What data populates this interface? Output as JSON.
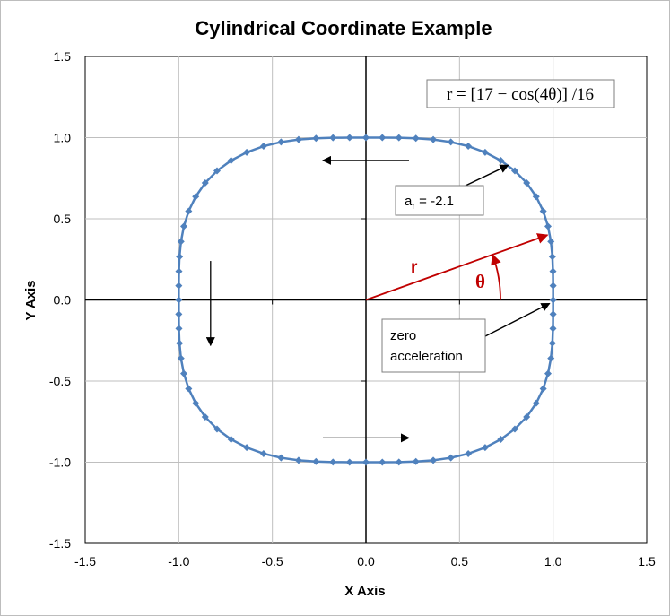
{
  "chart_data": {
    "type": "scatter",
    "title": "Cylindrical Coordinate Example",
    "xlabel": "X Axis",
    "ylabel": "Y Axis",
    "xlim": [
      -1.5,
      1.5
    ],
    "ylim": [
      -1.5,
      1.5
    ],
    "xticks": [
      "-1.5",
      "-1.0",
      "-0.5",
      "0.0",
      "0.5",
      "1.0",
      "1.5"
    ],
    "yticks": [
      "1.5",
      "1.0",
      "0.5",
      "0.0",
      "-0.5",
      "-1.0",
      "-1.5"
    ],
    "grid": true,
    "series": [
      {
        "color": "#4f81bd",
        "marker": "diamond",
        "points_count": 72,
        "curve": "r = [17 - cos(4θ)]/16, θ from 0° to 360° in 5° steps"
      }
    ],
    "annotations": {
      "formula": "r = [17 − cos(4θ)] /16",
      "accel_prefix": "a",
      "accel_sub": "r",
      "accel_value": " = -2.1",
      "zero_line1": "zero",
      "zero_line2": "acceleration",
      "r_label": "r",
      "theta_label": "θ",
      "radius_vector": {
        "x": 0.97,
        "y": 0.4
      },
      "accel_point": {
        "x": 0.76,
        "y": 0.83
      },
      "zero_point": {
        "x": 1.0,
        "y": 0.0
      },
      "direction_arrows": [
        {
          "from": [
            0.23,
            0.86
          ],
          "to": [
            -0.23,
            0.86
          ]
        },
        {
          "from": [
            -0.83,
            0.24
          ],
          "to": [
            -0.83,
            -0.28
          ]
        },
        {
          "from": [
            -0.23,
            -0.85
          ],
          "to": [
            0.23,
            -0.85
          ]
        }
      ]
    },
    "colors": {
      "curve": "#4f81bd",
      "vector": "#c00000",
      "axes": "#000000",
      "grid": "#bfbfbf"
    }
  }
}
